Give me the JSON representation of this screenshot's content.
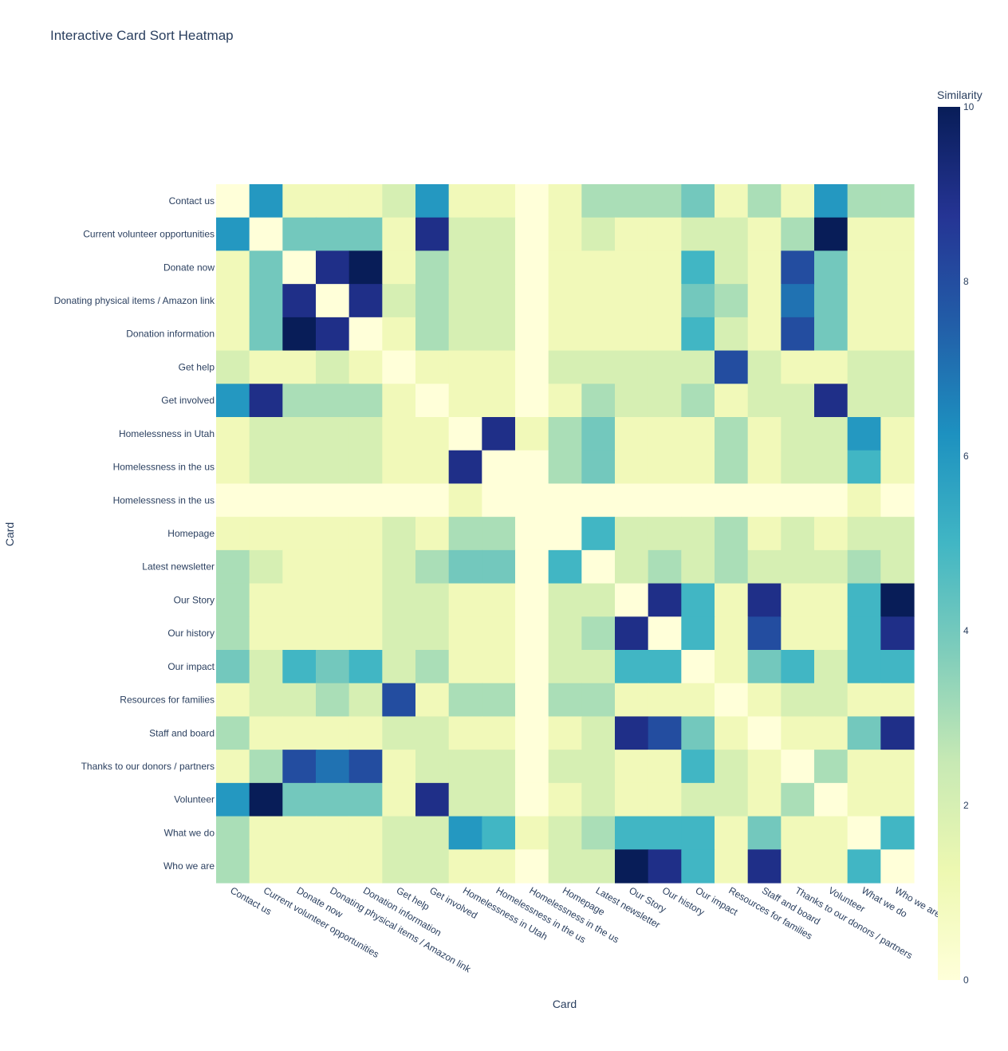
{
  "chart_data": {
    "type": "heatmap",
    "title": "Interactive Card Sort Heatmap",
    "xlabel": "Card",
    "ylabel": "Card",
    "colorbar_title": "Similarity",
    "zmin": 0,
    "zmax": 10,
    "colorbar_ticks": [
      "0",
      "2",
      "4",
      "6",
      "8",
      "10"
    ],
    "colorscale": "YlGnBu",
    "categories": [
      "Contact us",
      "Current volunteer opportunities",
      "Donate now",
      "Donating physical items / Amazon link",
      "Donation information",
      "Get help",
      "Get involved",
      "Homelessness in Utah",
      "Homelessness in the us",
      "Homelessness in the us",
      "Homepage",
      "Latest newsletter",
      "Our Story",
      "Our history",
      "Our impact",
      "Resources for families",
      "Staff and board",
      "Thanks to our donors / partners",
      "Volunteer",
      "What we do",
      "Who we are"
    ],
    "z": [
      [
        0,
        6,
        1,
        1,
        1,
        2,
        6,
        1,
        1,
        0,
        1,
        3,
        3,
        3,
        4,
        1,
        3,
        1,
        6,
        3,
        3
      ],
      [
        6,
        0,
        4,
        4,
        4,
        1,
        9,
        2,
        2,
        0,
        1,
        2,
        1,
        1,
        2,
        2,
        1,
        3,
        10,
        1,
        1
      ],
      [
        1,
        4,
        0,
        9,
        10,
        1,
        3,
        2,
        2,
        0,
        1,
        1,
        1,
        1,
        5,
        2,
        1,
        8,
        4,
        1,
        1
      ],
      [
        1,
        4,
        9,
        0,
        9,
        2,
        3,
        2,
        2,
        0,
        1,
        1,
        1,
        1,
        4,
        3,
        1,
        7,
        4,
        1,
        1
      ],
      [
        1,
        4,
        10,
        9,
        0,
        1,
        3,
        2,
        2,
        0,
        1,
        1,
        1,
        1,
        5,
        2,
        1,
        8,
        4,
        1,
        1
      ],
      [
        2,
        1,
        1,
        2,
        1,
        0,
        1,
        1,
        1,
        0,
        2,
        2,
        2,
        2,
        2,
        8,
        2,
        1,
        1,
        2,
        2
      ],
      [
        6,
        9,
        3,
        3,
        3,
        1,
        0,
        1,
        1,
        0,
        1,
        3,
        2,
        2,
        3,
        1,
        2,
        2,
        9,
        2,
        2
      ],
      [
        1,
        2,
        2,
        2,
        2,
        1,
        1,
        0,
        9,
        1,
        3,
        4,
        1,
        1,
        1,
        3,
        1,
        2,
        2,
        6,
        1
      ],
      [
        1,
        2,
        2,
        2,
        2,
        1,
        1,
        9,
        0,
        0,
        3,
        4,
        1,
        1,
        1,
        3,
        1,
        2,
        2,
        5,
        1
      ],
      [
        0,
        0,
        0,
        0,
        0,
        0,
        0,
        1,
        0,
        0,
        0,
        0,
        0,
        0,
        0,
        0,
        0,
        0,
        0,
        1,
        0
      ],
      [
        1,
        1,
        1,
        1,
        1,
        2,
        1,
        3,
        3,
        0,
        0,
        5,
        2,
        2,
        2,
        3,
        1,
        2,
        1,
        2,
        2
      ],
      [
        3,
        2,
        1,
        1,
        1,
        2,
        3,
        4,
        4,
        0,
        5,
        0,
        2,
        3,
        2,
        3,
        2,
        2,
        2,
        3,
        2
      ],
      [
        3,
        1,
        1,
        1,
        1,
        2,
        2,
        1,
        1,
        0,
        2,
        2,
        0,
        9,
        5,
        1,
        9,
        1,
        1,
        5,
        10
      ],
      [
        3,
        1,
        1,
        1,
        1,
        2,
        2,
        1,
        1,
        0,
        2,
        3,
        9,
        0,
        5,
        1,
        8,
        1,
        1,
        5,
        9
      ],
      [
        4,
        2,
        5,
        4,
        5,
        2,
        3,
        1,
        1,
        0,
        2,
        2,
        5,
        5,
        0,
        1,
        4,
        5,
        2,
        5,
        5
      ],
      [
        1,
        2,
        2,
        3,
        2,
        8,
        1,
        3,
        3,
        0,
        3,
        3,
        1,
        1,
        1,
        0,
        1,
        2,
        2,
        1,
        1
      ],
      [
        3,
        1,
        1,
        1,
        1,
        2,
        2,
        1,
        1,
        0,
        1,
        2,
        9,
        8,
        4,
        1,
        0,
        1,
        1,
        4,
        9
      ],
      [
        1,
        3,
        8,
        7,
        8,
        1,
        2,
        2,
        2,
        0,
        2,
        2,
        1,
        1,
        5,
        2,
        1,
        0,
        3,
        1,
        1
      ],
      [
        6,
        10,
        4,
        4,
        4,
        1,
        9,
        2,
        2,
        0,
        1,
        2,
        1,
        1,
        2,
        2,
        1,
        3,
        0,
        1,
        1
      ],
      [
        3,
        1,
        1,
        1,
        1,
        2,
        2,
        6,
        5,
        1,
        2,
        3,
        5,
        5,
        5,
        1,
        4,
        1,
        1,
        0,
        5
      ],
      [
        3,
        1,
        1,
        1,
        1,
        2,
        2,
        1,
        1,
        0,
        2,
        2,
        10,
        9,
        5,
        1,
        9,
        1,
        1,
        5,
        0
      ]
    ]
  }
}
